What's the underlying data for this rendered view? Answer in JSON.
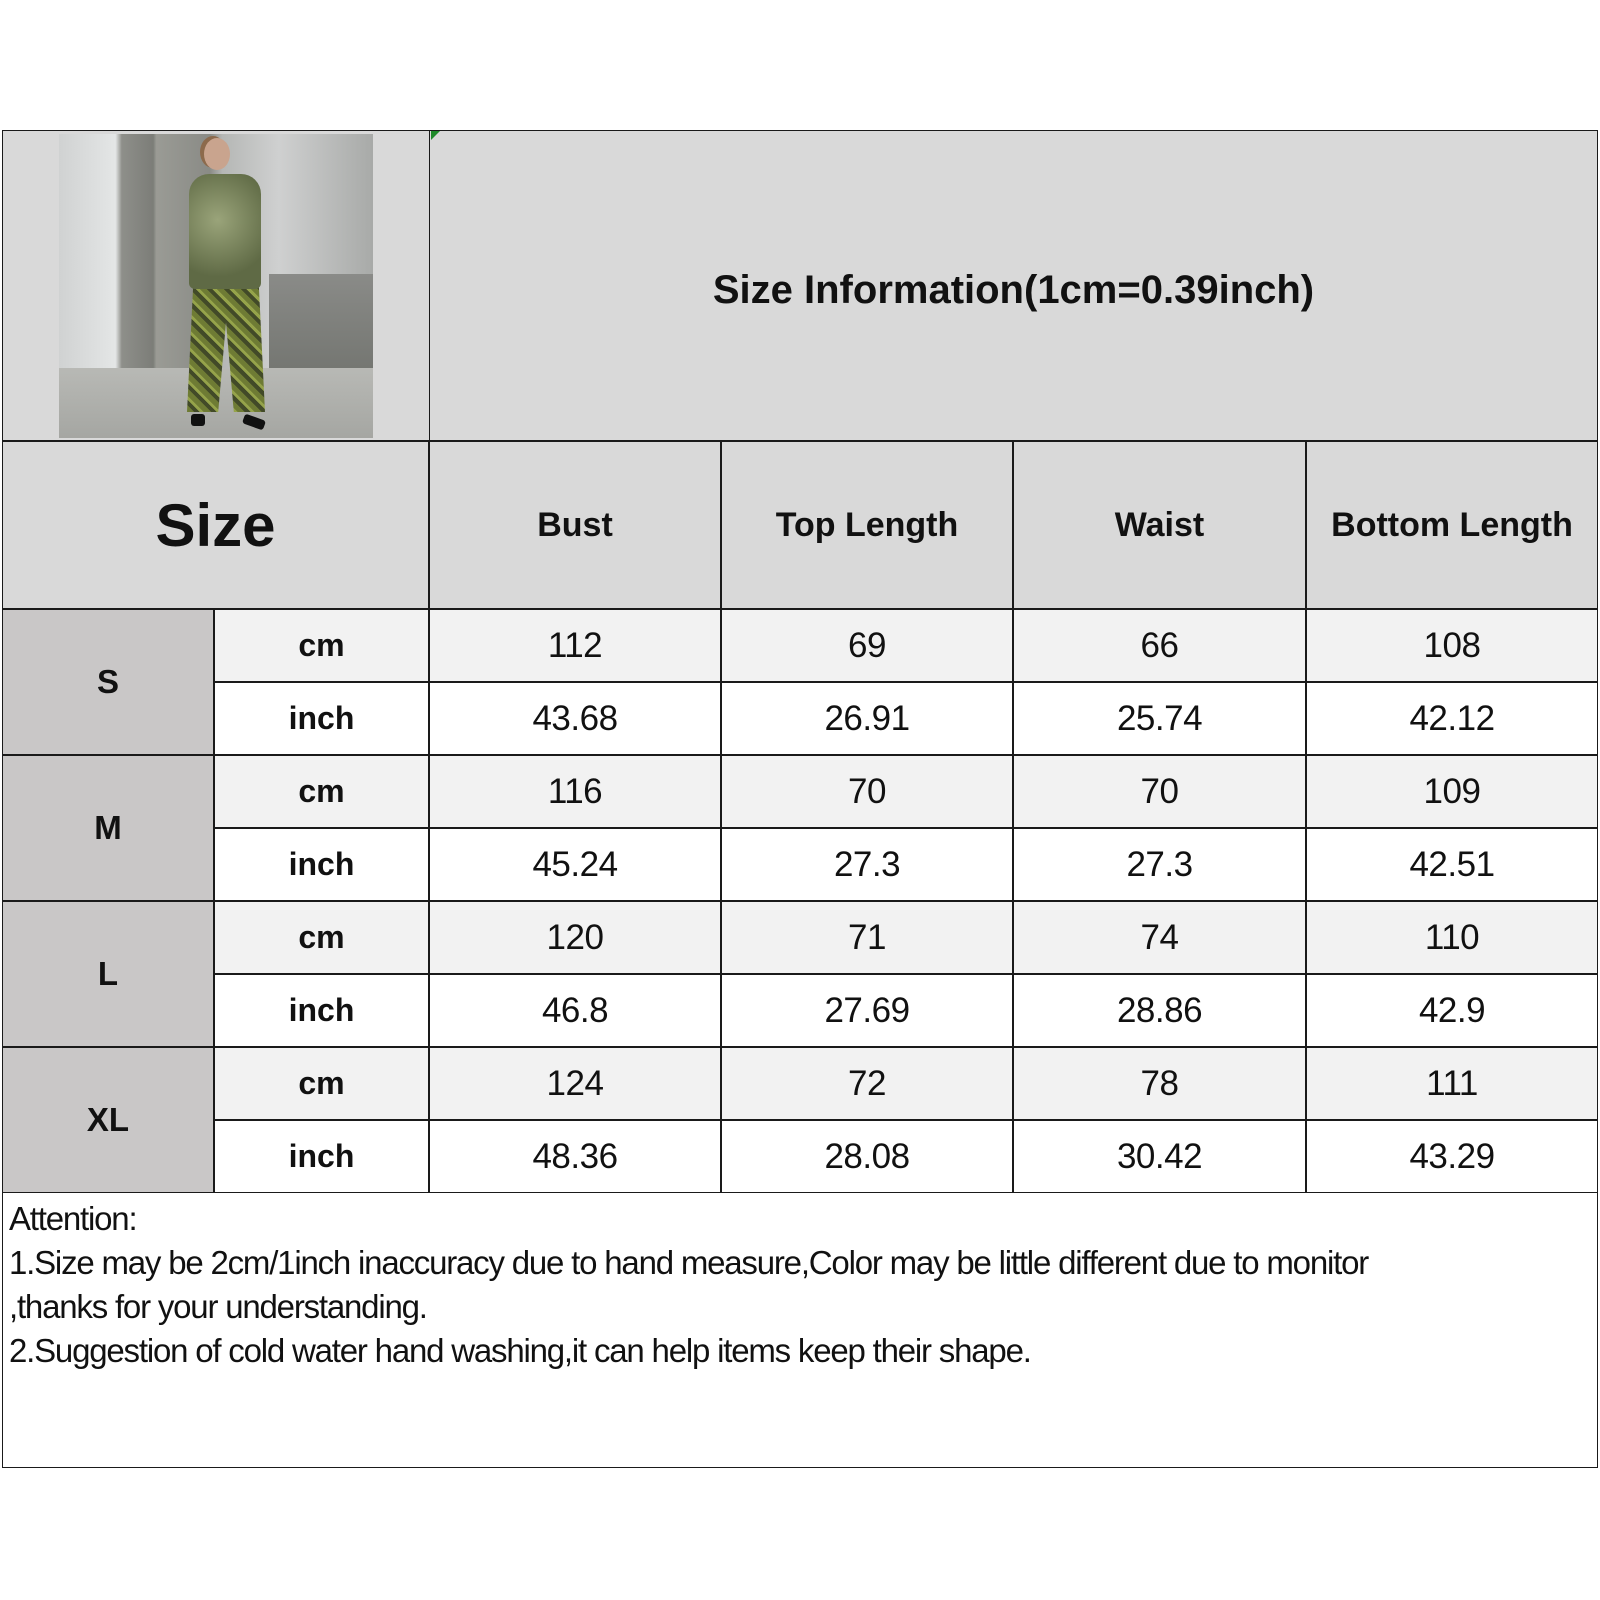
{
  "title": "Size Information(1cm=0.39inch)",
  "size_header": "Size",
  "columns": [
    "Bust",
    "Top Length",
    "Waist",
    "Bottom Length"
  ],
  "units": {
    "cm": "cm",
    "inch": "inch"
  },
  "rows": [
    {
      "size": "S",
      "cm": [
        "112",
        "69",
        "66",
        "108"
      ],
      "inch": [
        "43.68",
        "26.91",
        "25.74",
        "42.12"
      ]
    },
    {
      "size": "M",
      "cm": [
        "116",
        "70",
        "70",
        "109"
      ],
      "inch": [
        "45.24",
        "27.3",
        "27.3",
        "42.51"
      ]
    },
    {
      "size": "L",
      "cm": [
        "120",
        "71",
        "74",
        "110"
      ],
      "inch": [
        "46.8",
        "27.69",
        "28.86",
        "42.9"
      ]
    },
    {
      "size": "XL",
      "cm": [
        "124",
        "72",
        "78",
        "111"
      ],
      "inch": [
        "48.36",
        "28.08",
        "30.42",
        "43.29"
      ]
    }
  ],
  "attention": {
    "heading": "Attention:",
    "lines": [
      "1.Size may be 2cm/1inch inaccuracy due to hand measure,Color may be little different due to monitor",
      ",thanks for your understanding.",
      "2.Suggestion of cold water hand washing,it can help items keep their shape."
    ]
  },
  "colors": {
    "header_bg": "#d9d9d9",
    "size_bg": "#c9c7c7",
    "cm_row_bg": "#f2f2f2",
    "inch_row_bg": "#ffffff"
  }
}
